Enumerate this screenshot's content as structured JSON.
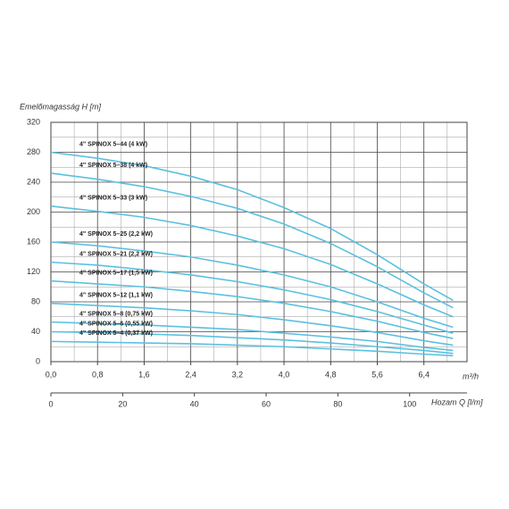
{
  "chart_data": {
    "type": "line",
    "y_label": "Emelőmagasság H [m]",
    "x_label": "m³/h",
    "x2_label": "Hozam Q [l/m]",
    "x": [
      0,
      0.8,
      1.6,
      2.4,
      3.2,
      4.0,
      4.8,
      5.6,
      6.4,
      6.9
    ],
    "xlim": [
      0,
      7.14
    ],
    "xticks": [
      {
        "value": 0,
        "label": "0,0"
      },
      {
        "value": 0.8,
        "label": "0,8"
      },
      {
        "value": 1.6,
        "label": "1,6"
      },
      {
        "value": 2.4,
        "label": "2,4"
      },
      {
        "value": 3.2,
        "label": "3,2"
      },
      {
        "value": 4.0,
        "label": "4,0"
      },
      {
        "value": 4.8,
        "label": "4,8"
      },
      {
        "value": 5.6,
        "label": "5,6"
      },
      {
        "value": 6.4,
        "label": "6,4"
      }
    ],
    "x_minor_ticks": [
      0.4,
      1.2,
      2.0,
      2.8,
      3.6,
      4.4,
      5.2,
      6.0,
      6.8
    ],
    "x2lim": [
      0,
      116
    ],
    "x2ticks": [
      0,
      20,
      40,
      60,
      80,
      100
    ],
    "ylim": [
      0,
      320
    ],
    "yticks": [
      0,
      40,
      80,
      120,
      160,
      200,
      240,
      280,
      320
    ],
    "y_minor_ticks": [
      20,
      60,
      100,
      140,
      180,
      220,
      260,
      300
    ],
    "grid": true,
    "series": [
      {
        "name": "4\" SPINOX 5–44 (4 kW)",
        "color": "#5bc0e0",
        "values": [
          280,
          272,
          262,
          248,
          230,
          206,
          178,
          143,
          104,
          82
        ]
      },
      {
        "name": "4\" SPINOX 5–38 (4 kW)",
        "color": "#5bc0e0",
        "values": [
          252,
          244,
          234,
          221,
          205,
          184,
          158,
          127,
          92,
          72
        ]
      },
      {
        "name": "4\" SPINOX 5–33 (3 kW)",
        "color": "#5bc0e0",
        "values": [
          208,
          201,
          193,
          182,
          168,
          151,
          130,
          104,
          76,
          60
        ]
      },
      {
        "name": "4\" SPINOX 5–25 (2,2 kW)",
        "color": "#5bc0e0",
        "values": [
          160,
          155,
          148,
          140,
          129,
          116,
          100,
          80,
          58,
          46
        ]
      },
      {
        "name": "4\" SPINOX 5–21 (2,2 kW)",
        "color": "#5bc0e0",
        "values": [
          133,
          129,
          123,
          116,
          107,
          96,
          83,
          67,
          49,
          38
        ]
      },
      {
        "name": "4\" SPINOX 5–17 (1,5 kW)",
        "color": "#5bc0e0",
        "values": [
          108,
          104,
          100,
          94,
          87,
          78,
          67,
          54,
          39,
          31
        ]
      },
      {
        "name": "4\" SPINOX 5–12 (1,1 kW)",
        "color": "#5bc0e0",
        "values": [
          78,
          75,
          72,
          68,
          63,
          56,
          48,
          39,
          28,
          22
        ]
      },
      {
        "name": "4\" SPINOX 5–8 (0,75 kW)",
        "color": "#5bc0e0",
        "values": [
          53,
          51,
          49,
          46,
          43,
          38,
          33,
          27,
          19,
          15
        ]
      },
      {
        "name": "4\" SPINOX 5–6 (0,55 kW)",
        "color": "#5bc0e0",
        "values": [
          40,
          39,
          37,
          35,
          32,
          29,
          25,
          20,
          15,
          11
        ]
      },
      {
        "name": "4\" SPINOX 5–4 (0,37 kW)",
        "color": "#5bc0e0",
        "values": [
          27,
          26,
          25,
          24,
          22,
          20,
          17,
          14,
          10,
          8
        ]
      }
    ]
  }
}
